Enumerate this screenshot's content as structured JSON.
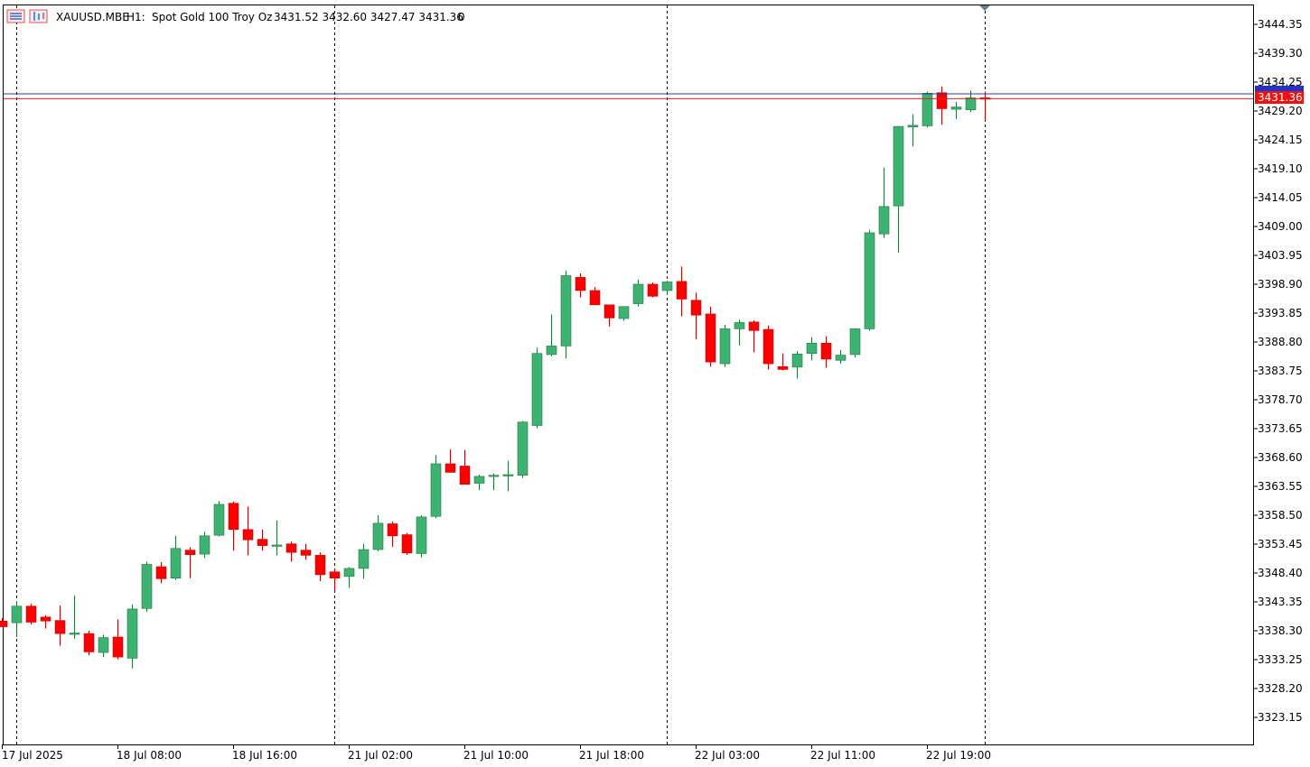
{
  "header": {
    "symbol": "XAUUSD.MBE",
    "timeframe": "H1:",
    "description": "Spot Gold 100 Troy Oz",
    "ohlc": "3431.52 3432.60 3427.47 3431.36",
    "volume": "0"
  },
  "price_scale": {
    "ticks": [
      "3444.35",
      "3439.30",
      "3434.25",
      "3429.20",
      "3424.15",
      "3419.10",
      "3414.05",
      "3409.00",
      "3403.95",
      "3398.90",
      "3393.85",
      "3388.80",
      "3383.75",
      "3378.70",
      "3373.65",
      "3368.60",
      "3363.55",
      "3358.50",
      "3353.45",
      "3348.40",
      "3343.35",
      "3338.30",
      "3333.25",
      "3328.20",
      "3323.15"
    ]
  },
  "current_price": {
    "bid": "3431.36",
    "bid_value": 3431.36,
    "ask_value": 3432.2
  },
  "time_axis": {
    "labels": [
      "17 Jul 2025",
      "18 Jul 08:00",
      "18 Jul 16:00",
      "21 Jul 02:00",
      "21 Jul 10:00",
      "21 Jul 18:00",
      "22 Jul 03:00",
      "22 Jul 11:00",
      "22 Jul 19:00"
    ],
    "label_bars": [
      0,
      8,
      16,
      24,
      32,
      40,
      48,
      56,
      64
    ]
  },
  "colors": {
    "bull": "#3cb371",
    "bear": "#ff0000",
    "wick_bull": "#1f7a3a",
    "wick_bear": "#cc0000",
    "bid_line": "#e02020",
    "ask_line": "#2b3a9c",
    "ask_badge": "#2233cc",
    "bid_badge": "#ee1111"
  },
  "chart_data": {
    "type": "candlestick",
    "title": "XAUUSD.MBE, H1: Spot Gold 100 Troy Oz",
    "ylim": [
      3318.5,
      3447.5
    ],
    "grid": false,
    "session_separator_bars": [
      1,
      23,
      46,
      68
    ],
    "candles": [
      {
        "o": 3340.0,
        "h": 3340.5,
        "l": 3339.0,
        "c": 3339.0
      },
      {
        "o": 3339.7,
        "h": 3343.5,
        "l": 3337.2,
        "c": 3342.6
      },
      {
        "o": 3342.6,
        "h": 3343.0,
        "l": 3339.4,
        "c": 3339.8
      },
      {
        "o": 3340.7,
        "h": 3341.0,
        "l": 3338.7,
        "c": 3340.0
      },
      {
        "o": 3340.1,
        "h": 3342.7,
        "l": 3335.7,
        "c": 3337.8
      },
      {
        "o": 3337.7,
        "h": 3344.5,
        "l": 3336.9,
        "c": 3337.9
      },
      {
        "o": 3337.8,
        "h": 3338.3,
        "l": 3334.0,
        "c": 3334.6
      },
      {
        "o": 3334.5,
        "h": 3337.6,
        "l": 3333.7,
        "c": 3337.1
      },
      {
        "o": 3337.2,
        "h": 3340.3,
        "l": 3333.3,
        "c": 3333.7
      },
      {
        "o": 3333.5,
        "h": 3342.9,
        "l": 3331.7,
        "c": 3342.1
      },
      {
        "o": 3342.2,
        "h": 3350.4,
        "l": 3341.6,
        "c": 3349.9
      },
      {
        "o": 3349.5,
        "h": 3350.3,
        "l": 3346.6,
        "c": 3347.4
      },
      {
        "o": 3347.5,
        "h": 3354.9,
        "l": 3347.2,
        "c": 3352.7
      },
      {
        "o": 3352.4,
        "h": 3352.9,
        "l": 3347.5,
        "c": 3351.6
      },
      {
        "o": 3351.7,
        "h": 3355.6,
        "l": 3351.0,
        "c": 3354.9
      },
      {
        "o": 3355.0,
        "h": 3361.0,
        "l": 3354.8,
        "c": 3360.4
      },
      {
        "o": 3360.6,
        "h": 3360.9,
        "l": 3352.3,
        "c": 3356.0
      },
      {
        "o": 3356.0,
        "h": 3360.0,
        "l": 3351.5,
        "c": 3354.2
      },
      {
        "o": 3354.3,
        "h": 3356.0,
        "l": 3352.3,
        "c": 3353.2
      },
      {
        "o": 3353.2,
        "h": 3357.6,
        "l": 3351.5,
        "c": 3353.3
      },
      {
        "o": 3353.5,
        "h": 3353.9,
        "l": 3350.4,
        "c": 3352.0
      },
      {
        "o": 3352.4,
        "h": 3353.5,
        "l": 3350.7,
        "c": 3351.5
      },
      {
        "o": 3351.5,
        "h": 3352.0,
        "l": 3347.0,
        "c": 3348.1
      },
      {
        "o": 3348.6,
        "h": 3349.2,
        "l": 3345.2,
        "c": 3347.5
      },
      {
        "o": 3347.8,
        "h": 3349.4,
        "l": 3345.8,
        "c": 3349.2
      },
      {
        "o": 3349.2,
        "h": 3353.5,
        "l": 3347.4,
        "c": 3352.5
      },
      {
        "o": 3352.5,
        "h": 3358.5,
        "l": 3352.2,
        "c": 3357.1
      },
      {
        "o": 3357.0,
        "h": 3357.4,
        "l": 3353.0,
        "c": 3354.9
      },
      {
        "o": 3355.1,
        "h": 3355.4,
        "l": 3351.6,
        "c": 3351.9
      },
      {
        "o": 3351.8,
        "h": 3358.5,
        "l": 3351.1,
        "c": 3358.2
      },
      {
        "o": 3358.3,
        "h": 3369.0,
        "l": 3358.0,
        "c": 3367.5
      },
      {
        "o": 3367.5,
        "h": 3370.0,
        "l": 3366.0,
        "c": 3366.0
      },
      {
        "o": 3367.1,
        "h": 3369.9,
        "l": 3364.0,
        "c": 3363.9
      },
      {
        "o": 3364.1,
        "h": 3365.6,
        "l": 3362.9,
        "c": 3365.3
      },
      {
        "o": 3365.3,
        "h": 3365.8,
        "l": 3362.9,
        "c": 3365.5
      },
      {
        "o": 3365.6,
        "h": 3368.0,
        "l": 3362.7,
        "c": 3365.6
      },
      {
        "o": 3365.5,
        "h": 3375.0,
        "l": 3365.0,
        "c": 3374.8
      },
      {
        "o": 3374.2,
        "h": 3387.8,
        "l": 3373.7,
        "c": 3386.8
      },
      {
        "o": 3386.6,
        "h": 3393.6,
        "l": 3386.3,
        "c": 3388.1
      },
      {
        "o": 3388.1,
        "h": 3401.3,
        "l": 3385.9,
        "c": 3400.4
      },
      {
        "o": 3400.1,
        "h": 3400.8,
        "l": 3396.6,
        "c": 3397.8
      },
      {
        "o": 3397.8,
        "h": 3398.4,
        "l": 3395.3,
        "c": 3395.3
      },
      {
        "o": 3395.3,
        "h": 3395.3,
        "l": 3391.5,
        "c": 3393.0
      },
      {
        "o": 3392.9,
        "h": 3395.0,
        "l": 3392.5,
        "c": 3395.0
      },
      {
        "o": 3395.5,
        "h": 3399.7,
        "l": 3395.0,
        "c": 3398.9
      },
      {
        "o": 3398.9,
        "h": 3399.2,
        "l": 3396.6,
        "c": 3396.8
      },
      {
        "o": 3397.8,
        "h": 3399.5,
        "l": 3397.0,
        "c": 3399.3
      },
      {
        "o": 3399.4,
        "h": 3402.0,
        "l": 3393.3,
        "c": 3396.3
      },
      {
        "o": 3396.1,
        "h": 3397.4,
        "l": 3389.3,
        "c": 3393.5
      },
      {
        "o": 3393.7,
        "h": 3395.0,
        "l": 3384.5,
        "c": 3385.3
      },
      {
        "o": 3385.0,
        "h": 3391.8,
        "l": 3384.4,
        "c": 3391.1
      },
      {
        "o": 3391.1,
        "h": 3392.7,
        "l": 3388.2,
        "c": 3392.2
      },
      {
        "o": 3392.3,
        "h": 3392.6,
        "l": 3387.0,
        "c": 3390.8
      },
      {
        "o": 3391.0,
        "h": 3391.7,
        "l": 3384.0,
        "c": 3385.0
      },
      {
        "o": 3384.5,
        "h": 3386.8,
        "l": 3383.8,
        "c": 3384.0
      },
      {
        "o": 3384.4,
        "h": 3387.2,
        "l": 3382.4,
        "c": 3386.7
      },
      {
        "o": 3386.8,
        "h": 3389.6,
        "l": 3385.6,
        "c": 3388.6
      },
      {
        "o": 3388.6,
        "h": 3389.8,
        "l": 3384.3,
        "c": 3385.8
      },
      {
        "o": 3385.6,
        "h": 3387.4,
        "l": 3385.0,
        "c": 3386.5
      },
      {
        "o": 3386.6,
        "h": 3391.2,
        "l": 3386.1,
        "c": 3391.1
      },
      {
        "o": 3391.1,
        "h": 3408.4,
        "l": 3390.8,
        "c": 3407.9
      },
      {
        "o": 3407.7,
        "h": 3419.3,
        "l": 3407.0,
        "c": 3412.5
      },
      {
        "o": 3412.6,
        "h": 3426.6,
        "l": 3404.4,
        "c": 3426.5
      },
      {
        "o": 3426.4,
        "h": 3428.6,
        "l": 3423.0,
        "c": 3426.7
      },
      {
        "o": 3426.6,
        "h": 3432.6,
        "l": 3426.3,
        "c": 3432.3
      },
      {
        "o": 3432.4,
        "h": 3433.5,
        "l": 3426.8,
        "c": 3429.6
      },
      {
        "o": 3429.5,
        "h": 3430.8,
        "l": 3427.8,
        "c": 3429.9
      },
      {
        "o": 3429.4,
        "h": 3432.8,
        "l": 3429.0,
        "c": 3431.5
      },
      {
        "o": 3431.5,
        "h": 3432.6,
        "l": 3427.5,
        "c": 3431.4
      }
    ]
  }
}
